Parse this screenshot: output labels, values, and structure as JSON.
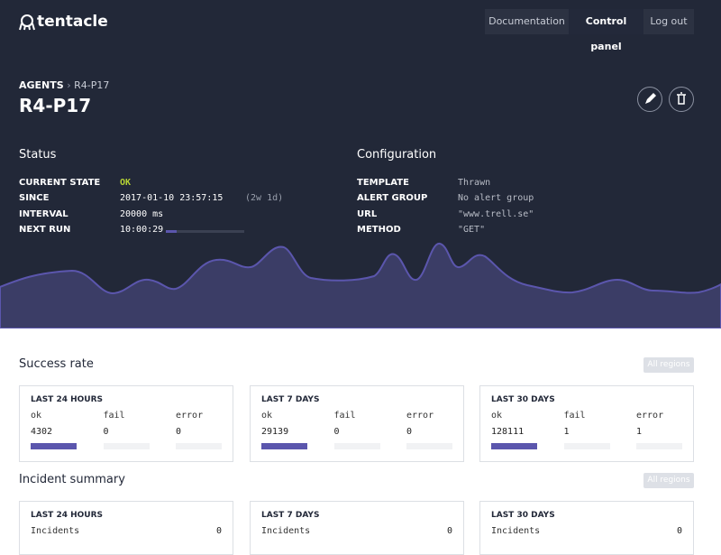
{
  "nav": {
    "logo": "tentacle",
    "links": [
      "Documentation",
      "Control panel",
      "Log out"
    ]
  },
  "breadcrumb": {
    "parent": "AGENTS",
    "separator": "›",
    "current": "R4-P17"
  },
  "title": "R4-P17",
  "status": {
    "heading": "Status",
    "rows": [
      {
        "label": "CURRENT STATE",
        "value": "OK"
      },
      {
        "label": "SINCE",
        "value": "2017-01-10 23:57:15",
        "note": "(2w 1d)"
      },
      {
        "label": "INTERVAL",
        "value": "20000 ms"
      },
      {
        "label": "NEXT RUN",
        "value": "10:00:29"
      }
    ]
  },
  "configuration": {
    "heading": "Configuration",
    "rows": [
      {
        "label": "TEMPLATE",
        "value": "Thrawn"
      },
      {
        "label": "ALERT GROUP",
        "value": "No alert group"
      },
      {
        "label": "URL",
        "value": "\"www.trell.se\""
      },
      {
        "label": "METHOD",
        "value": "\"GET\""
      }
    ]
  },
  "success_rate": {
    "heading": "Success rate",
    "filter": "All regions",
    "columns": [
      "ok",
      "fail",
      "error"
    ],
    "cards": [
      {
        "period": "LAST 24 HOURS",
        "values": [
          4302,
          0,
          0
        ]
      },
      {
        "period": "LAST 7 DAYS",
        "values": [
          29139,
          0,
          0
        ]
      },
      {
        "period": "LAST 30 DAYS",
        "values": [
          128111,
          1,
          1
        ]
      }
    ]
  },
  "incident_summary": {
    "heading": "Incident summary",
    "filter": "All regions",
    "cards": [
      {
        "period": "LAST 24 HOURS",
        "label": "Incidents",
        "value": 0
      },
      {
        "period": "LAST 7 DAYS",
        "label": "Incidents",
        "value": 0
      },
      {
        "period": "LAST 30 DAYS",
        "label": "Incidents",
        "value": 0
      }
    ]
  }
}
